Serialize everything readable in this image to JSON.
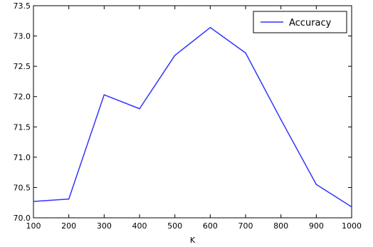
{
  "chart_data": {
    "type": "line",
    "x": [
      100,
      200,
      300,
      400,
      500,
      600,
      700,
      800,
      900,
      1000
    ],
    "series": [
      {
        "name": "Accuracy",
        "color": "#3333ff",
        "values": [
          70.27,
          70.31,
          72.03,
          71.8,
          72.68,
          73.14,
          72.72,
          71.62,
          70.55,
          70.18
        ]
      }
    ],
    "xlabel": "K",
    "ylabel": "",
    "title": "",
    "xlim": [
      100,
      1000
    ],
    "ylim": [
      70.0,
      73.5
    ],
    "x_ticks": [
      "100",
      "200",
      "300",
      "400",
      "500",
      "600",
      "700",
      "800",
      "900",
      "1000"
    ],
    "y_ticks": [
      "70.0",
      "70.5",
      "71.0",
      "71.5",
      "72.0",
      "72.5",
      "73.0",
      "73.5"
    ],
    "grid": false,
    "legend_position": "top-right"
  }
}
